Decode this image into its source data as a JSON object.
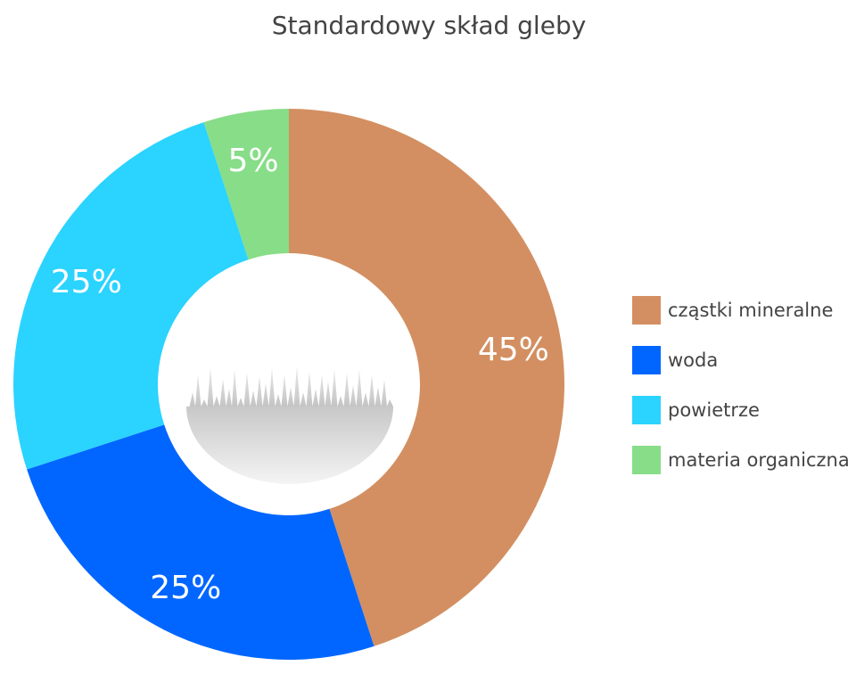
{
  "chart_data": {
    "type": "pie",
    "title": "Standardowy skład gleby",
    "donut": true,
    "legend_position": "right",
    "slices": [
      {
        "name": "cząstki mineralne",
        "value": 45,
        "label": "45%",
        "color": "#D38F61"
      },
      {
        "name": "woda",
        "value": 25,
        "label": "25%",
        "color": "#0066FF"
      },
      {
        "name": "powietrze",
        "value": 25,
        "label": "25%",
        "color": "#2BD3FF"
      },
      {
        "name": "materia organiczna",
        "value": 5,
        "label": "5%",
        "color": "#88DD88"
      }
    ]
  },
  "center_icon": "grass-icon"
}
